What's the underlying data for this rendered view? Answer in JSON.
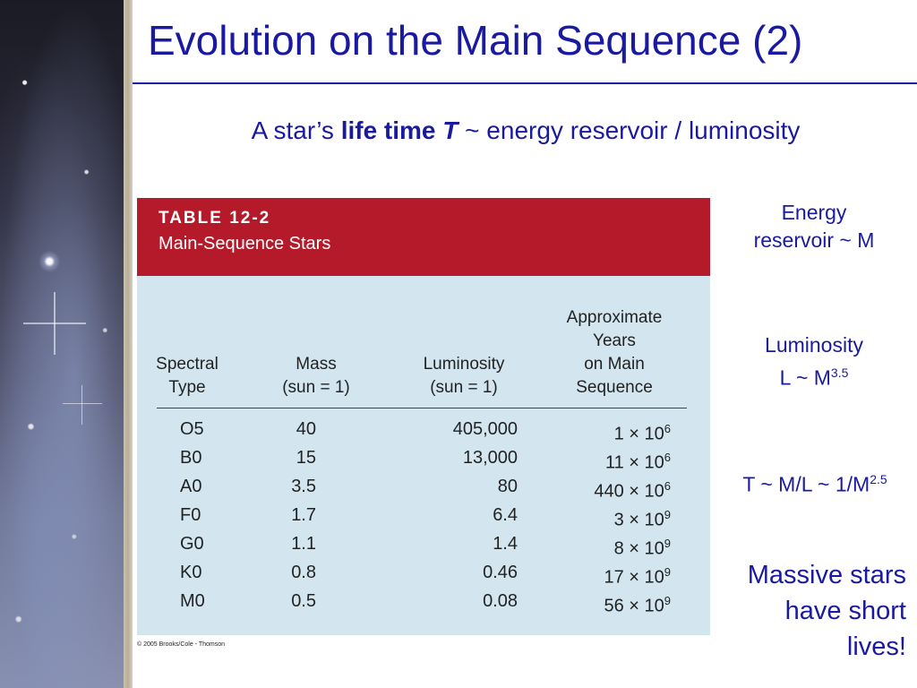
{
  "slide": {
    "title": "Evolution on the Main Sequence (2)",
    "subtitle": {
      "prefix": "A star’s ",
      "bold": "life time ",
      "bold_italic": "T",
      "suffix": " ~ energy reservoir / luminosity"
    }
  },
  "table": {
    "label": "TABLE 12-2",
    "caption": "Main-Sequence Stars",
    "headers": {
      "spectral": [
        "Spectral",
        "Type"
      ],
      "mass": [
        "Mass",
        "(sun = 1)"
      ],
      "luminosity": [
        "Luminosity",
        "(sun = 1)"
      ],
      "years": [
        "Approximate",
        "Years",
        "on Main",
        "Sequence"
      ]
    },
    "rows": [
      {
        "type": "O5",
        "mass": "40",
        "luminosity": "405,000",
        "years_coeff": "1 × 10",
        "years_exp": "6"
      },
      {
        "type": "B0",
        "mass": "15",
        "luminosity": "13,000",
        "years_coeff": "11 × 10",
        "years_exp": "6"
      },
      {
        "type": "A0",
        "mass": "3.5",
        "luminosity": "80",
        "years_coeff": "440 × 10",
        "years_exp": "6"
      },
      {
        "type": "F0",
        "mass": "1.7",
        "luminosity": "6.4",
        "years_coeff": "3 × 10",
        "years_exp": "9"
      },
      {
        "type": "G0",
        "mass": "1.1",
        "luminosity": "1.4",
        "years_coeff": "8 × 10",
        "years_exp": "9"
      },
      {
        "type": "K0",
        "mass": "0.8",
        "luminosity": "0.46",
        "years_coeff": "17 × 10",
        "years_exp": "9"
      },
      {
        "type": "M0",
        "mass": "0.5",
        "luminosity": "0.08",
        "years_coeff": "56 × 10",
        "years_exp": "9"
      }
    ],
    "copyright": "© 2005 Brooks/Cole - Thomson",
    "colors": {
      "header_red": "#b51a2a",
      "body_blue": "#d3e6f0"
    }
  },
  "notes": {
    "energy": [
      "Energy",
      "reservoir ~ M"
    ],
    "luminosity": [
      "Luminosity",
      "L ~ M",
      "3.5"
    ],
    "lifetime": [
      "T ~ M/L ~ 1/M",
      "2.5"
    ],
    "massive": [
      "Massive stars",
      "have short",
      "lives!"
    ]
  },
  "colors": {
    "text_blue": "#1a1aa0"
  }
}
